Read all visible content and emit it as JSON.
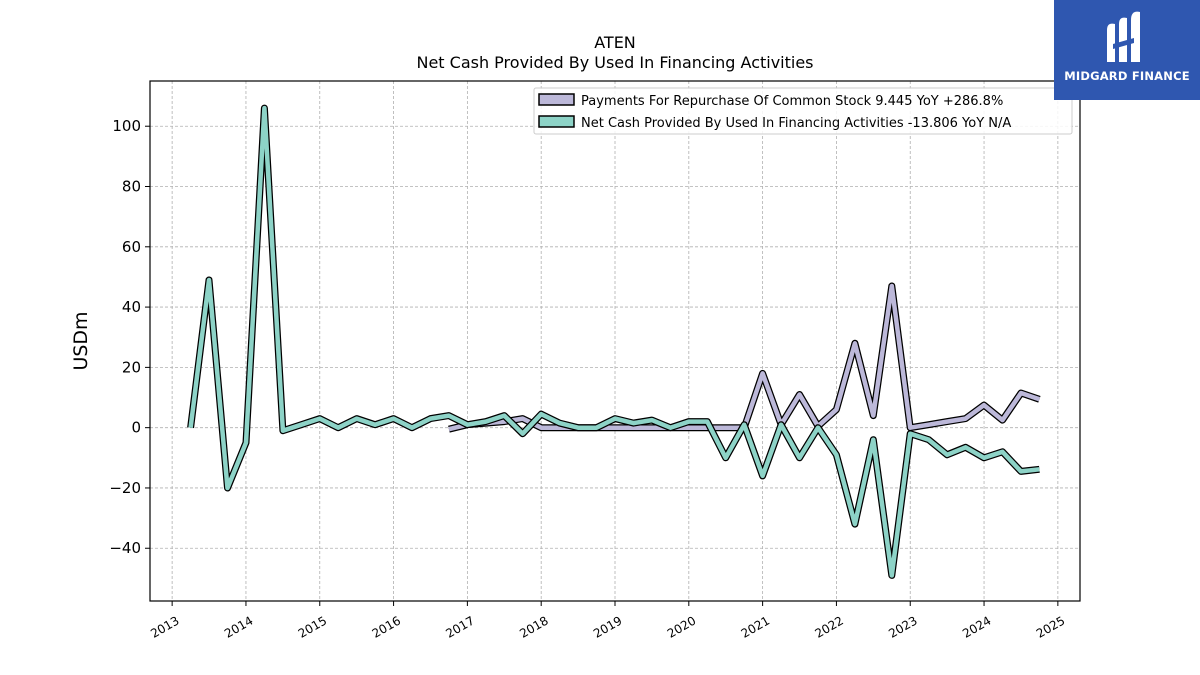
{
  "chart_data": {
    "type": "line",
    "title": "ATEN",
    "subtitle": "Net Cash Provided By Used In Financing Activities",
    "xlabel": "",
    "ylabel": "USDm",
    "xlim": [
      2012.7,
      2025.3
    ],
    "ylim": [
      -57.5,
      115
    ],
    "x_ticks": [
      2013,
      2014,
      2015,
      2016,
      2017,
      2018,
      2019,
      2020,
      2021,
      2022,
      2023,
      2024,
      2025
    ],
    "x_tick_labels": [
      "2013",
      "2014",
      "2015",
      "2016",
      "2017",
      "2018",
      "2019",
      "2020",
      "2021",
      "2022",
      "2023",
      "2024",
      "2025"
    ],
    "y_ticks": [
      -40,
      -20,
      0,
      20,
      40,
      60,
      80,
      100
    ],
    "y_tick_labels": [
      "−40",
      "−20",
      "0",
      "20",
      "40",
      "60",
      "80",
      "100"
    ],
    "grid": true,
    "legend_position": "top-right",
    "series": [
      {
        "name": "Payments For Repurchase Of Common Stock",
        "legend_label": "Payments For Repurchase Of Common Stock  9.445 YoY +286.8%",
        "color": "#bcb8d9",
        "x": [
          2016.75,
          2017.0,
          2017.25,
          2017.5,
          2017.75,
          2018.0,
          2018.25,
          2018.5,
          2018.75,
          2019.0,
          2019.25,
          2019.5,
          2019.75,
          2020.0,
          2020.25,
          2020.5,
          2020.75,
          2021.0,
          2021.25,
          2021.5,
          2021.75,
          2022.0,
          2022.25,
          2022.5,
          2022.75,
          2023.0,
          2023.25,
          2023.5,
          2023.75,
          2024.0,
          2024.25,
          2024.5,
          2024.75
        ],
        "y": [
          -0.5,
          1,
          1.5,
          2,
          3,
          0,
          0,
          0,
          0,
          0,
          0,
          0,
          0,
          0,
          0,
          0,
          0,
          18,
          1,
          11,
          0.5,
          6,
          28,
          4,
          47,
          0,
          1,
          2,
          3,
          7.5,
          2.5,
          11.5,
          9.4
        ]
      },
      {
        "name": "Net Cash Provided By Used In Financing Activities",
        "legend_label": "Net Cash Provided By Used In Financing Activities  -13.806 YoY N/A",
        "color": "#8dd3c7",
        "x": [
          2013.25,
          2013.5,
          2013.75,
          2014.0,
          2014.25,
          2014.5,
          2014.75,
          2015.0,
          2015.25,
          2015.5,
          2015.75,
          2016.0,
          2016.25,
          2016.5,
          2016.75,
          2017.0,
          2017.25,
          2017.5,
          2017.75,
          2018.0,
          2018.25,
          2018.5,
          2018.75,
          2019.0,
          2019.25,
          2019.5,
          2019.75,
          2020.0,
          2020.25,
          2020.5,
          2020.75,
          2021.0,
          2021.25,
          2021.5,
          2021.75,
          2022.0,
          2022.25,
          2022.5,
          2022.75,
          2023.0,
          2023.25,
          2023.5,
          2023.75,
          2024.0,
          2024.25,
          2024.5,
          2024.75
        ],
        "y": [
          0,
          49,
          -20,
          -5,
          106,
          -1,
          1,
          3,
          0,
          3,
          1,
          3,
          0,
          3,
          4,
          1,
          2,
          4,
          -2,
          4.5,
          1.5,
          0,
          0,
          3,
          1.5,
          2.5,
          0,
          2,
          2,
          -10,
          1,
          -16,
          1,
          -10,
          0,
          -9,
          -32,
          -4,
          -49,
          -2,
          -4,
          -9,
          -6.5,
          -10,
          -8,
          -14.5,
          -13.8
        ]
      }
    ]
  }
}
